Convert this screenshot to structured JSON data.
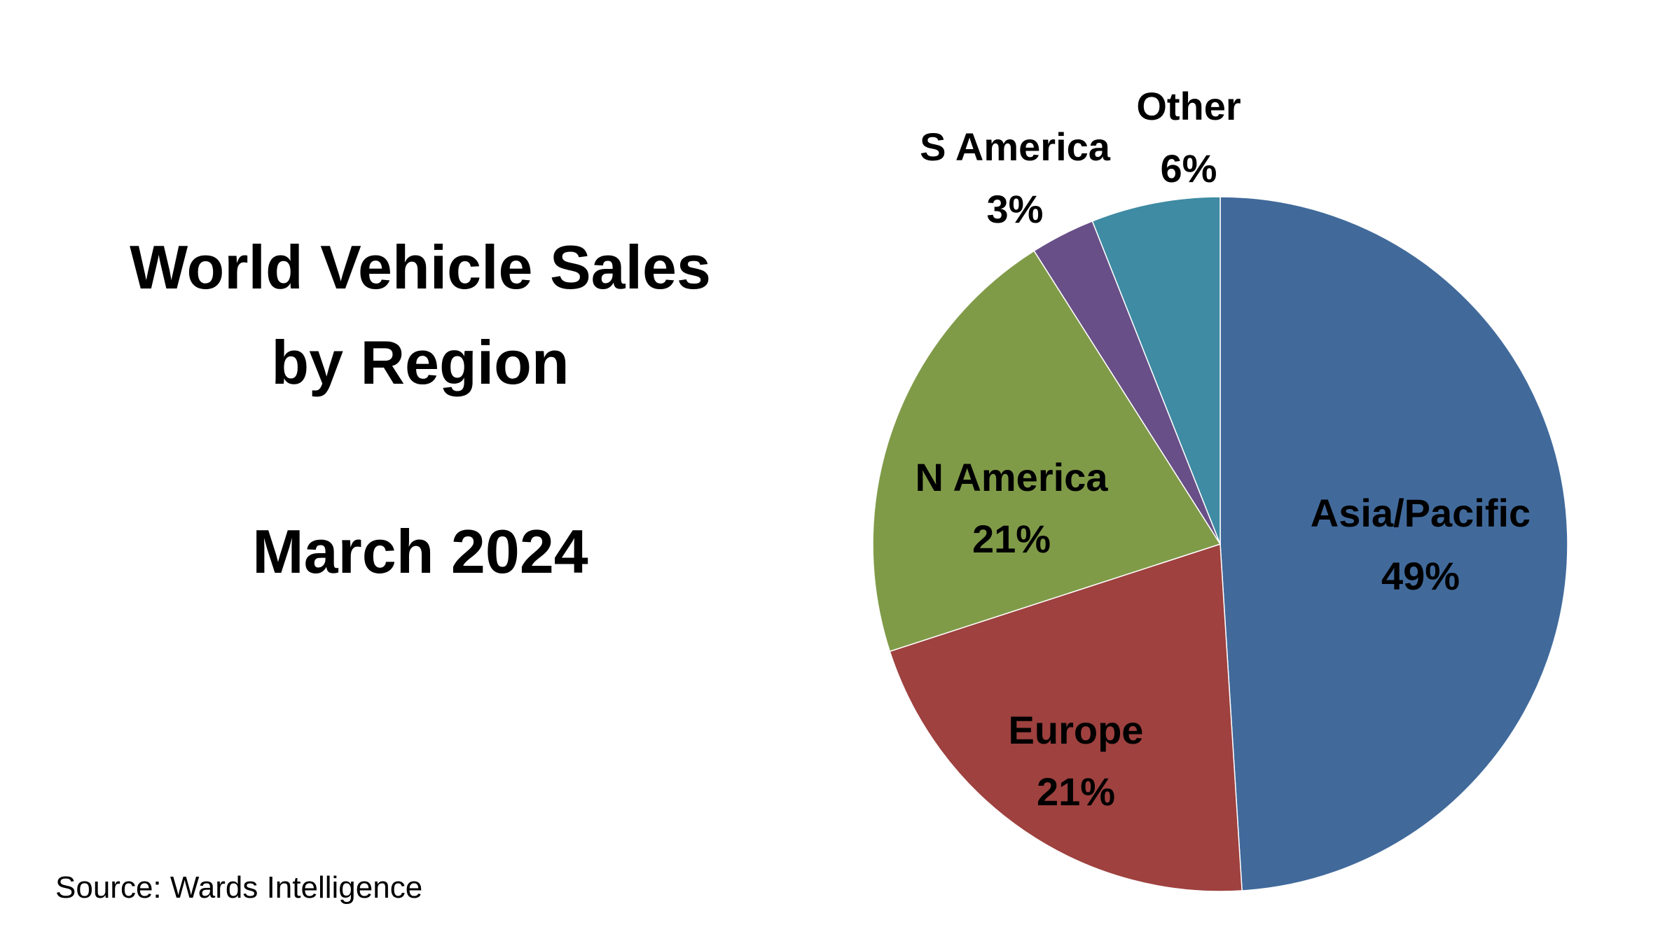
{
  "chart_data": {
    "type": "pie",
    "title_lines": [
      "World Vehicle Sales",
      "by Region",
      "March 2024"
    ],
    "source": "Source: Wards Intelligence",
    "start_angle": "top",
    "direction": "clockwise",
    "slices": [
      {
        "label": "Asia/Pacific",
        "value": 49,
        "value_label": "49%",
        "color": "#416A9B"
      },
      {
        "label": "Europe",
        "value": 21,
        "value_label": "21%",
        "color": "#9E413F"
      },
      {
        "label": "N America",
        "value": 21,
        "value_label": "21%",
        "color": "#809B48"
      },
      {
        "label": "S America",
        "value": 3,
        "value_label": "3%",
        "color": "#684F87"
      },
      {
        "label": "Other",
        "value": 6,
        "value_label": "6%",
        "color": "#3E8BA3"
      }
    ]
  }
}
